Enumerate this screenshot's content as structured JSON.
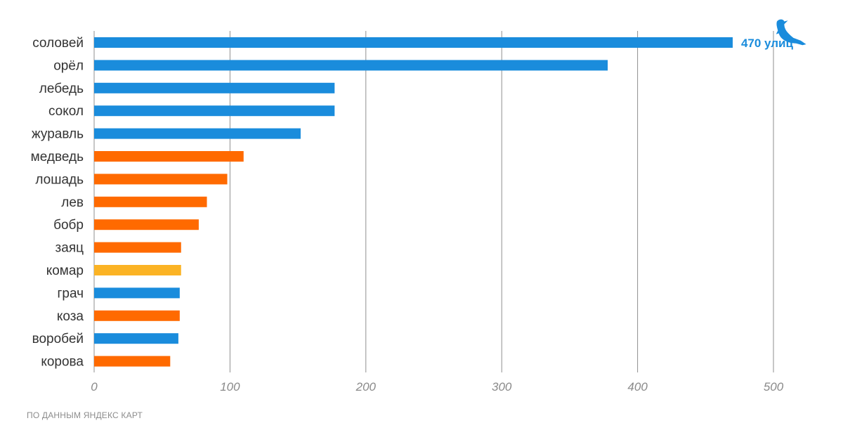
{
  "chart_data": {
    "type": "bar",
    "orientation": "horizontal",
    "categories": [
      "соловей",
      "орёл",
      "лебедь",
      "сокол",
      "журавль",
      "медведь",
      "лошадь",
      "лев",
      "бобр",
      "заяц",
      "комар",
      "грач",
      "коза",
      "воробей",
      "корова"
    ],
    "values": [
      470,
      378,
      177,
      177,
      152,
      110,
      98,
      83,
      77,
      64,
      64,
      63,
      63,
      62,
      56
    ],
    "groups": [
      "bird",
      "bird",
      "bird",
      "bird",
      "bird",
      "mammal",
      "mammal",
      "mammal",
      "mammal",
      "mammal",
      "insect",
      "bird",
      "mammal",
      "bird",
      "mammal"
    ],
    "colors": {
      "bird": "#1a8cdc",
      "mammal": "#ff6a00",
      "insect": "#fbb324"
    },
    "xlim": [
      0,
      500
    ],
    "xticks": [
      "0",
      "100",
      "200",
      "300",
      "400",
      "500"
    ],
    "grid": true,
    "annotation": {
      "text": "470 улиц",
      "category": "соловей",
      "icon": "bird-icon"
    },
    "xlabel": "",
    "ylabel": ""
  },
  "source": "ПО ДАННЫМ ЯНДЕКС КАРТ"
}
